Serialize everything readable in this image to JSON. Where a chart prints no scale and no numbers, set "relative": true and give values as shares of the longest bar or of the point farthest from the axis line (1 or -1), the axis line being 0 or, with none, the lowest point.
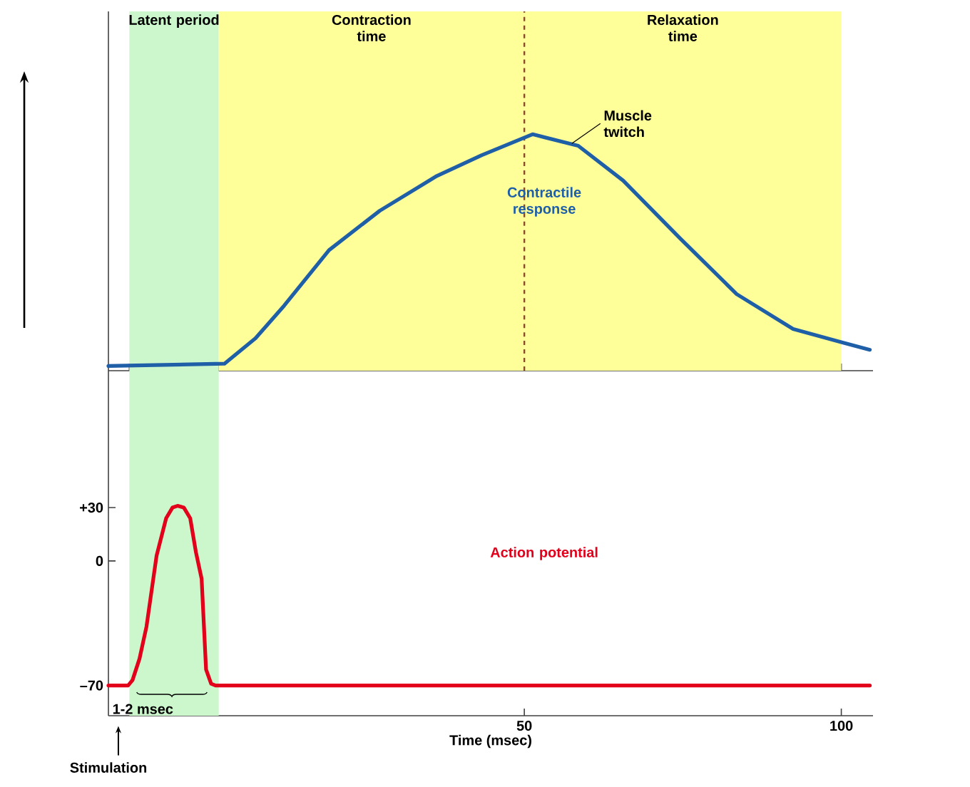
{
  "chart_data": [
    {
      "type": "line",
      "relative": true,
      "xlim": [
        -15.6,
        105
      ],
      "xticks": [
        {
          "value": -12.3,
          "label": null
        },
        {
          "value": 1.8,
          "label": null
        },
        {
          "value": 100,
          "label": null
        }
      ],
      "tick_labels": false,
      "series": [
        {
          "name": "Contractile response",
          "color": "#1f5fa8",
          "x": [
            -15.6,
            2.7,
            7.6,
            12.1,
            19.2,
            27.2,
            36.2,
            43.3,
            51.3,
            58.5,
            65.6,
            74.6,
            83.5,
            92.4,
            100.4,
            104.5
          ],
          "values": [
            0,
            0.01,
            0.12,
            0.26,
            0.5,
            0.67,
            0.82,
            0.91,
            1,
            0.95,
            0.8,
            0.55,
            0.31,
            0.16,
            0.1,
            0.07
          ]
        }
      ],
      "bands": [
        {
          "axis": "x",
          "from": -12.3,
          "to": 1.8,
          "label": "Latent period",
          "color": "#ccf7cc"
        },
        {
          "axis": "x",
          "from": 1.8,
          "to": 50,
          "label": "Contraction time",
          "color": "#ffff99"
        },
        {
          "axis": "x",
          "from": 50,
          "to": 100,
          "label": "Relaxation time",
          "color": "#ffff99"
        }
      ],
      "ref_lines": [
        {
          "axis": "x",
          "value": 50,
          "color": "#8b4a2b",
          "line_style": "dashed"
        }
      ],
      "annotations": [
        {
          "text": "Muscle twitch",
          "x": 57.5,
          "y": 0.96
        }
      ]
    },
    {
      "type": "line",
      "xlim": [
        -15.6,
        105
      ],
      "xticks": [
        50,
        100
      ],
      "ylim": [
        -87,
        107
      ],
      "yticks": [
        {
          "value": 30,
          "label": "+30"
        },
        0,
        {
          "value": -70,
          "label": "–70"
        }
      ],
      "xlabel": "Time (msec)",
      "series": [
        {
          "name": "Action potential",
          "color": "#e3001b",
          "x": [
            -15.6,
            -12.5,
            -11.8,
            -10.7,
            -9.6,
            -8,
            -6.5,
            -5.5,
            -4.7,
            -3.7,
            -2.7,
            -1.8,
            -0.9,
            -0.2,
            0.6,
            1.3,
            104.5
          ],
          "values": [
            -70,
            -70,
            -67,
            -55,
            -37,
            3,
            24,
            30,
            31,
            30,
            24,
            5,
            -10,
            -61,
            -69,
            -70,
            -70
          ]
        }
      ],
      "bands": [
        {
          "axis": "x",
          "from": -12.3,
          "to": 1.8,
          "color": "#ccf7cc"
        }
      ],
      "annotations": [
        "1-2 msec",
        "Stimulation"
      ]
    }
  ]
}
